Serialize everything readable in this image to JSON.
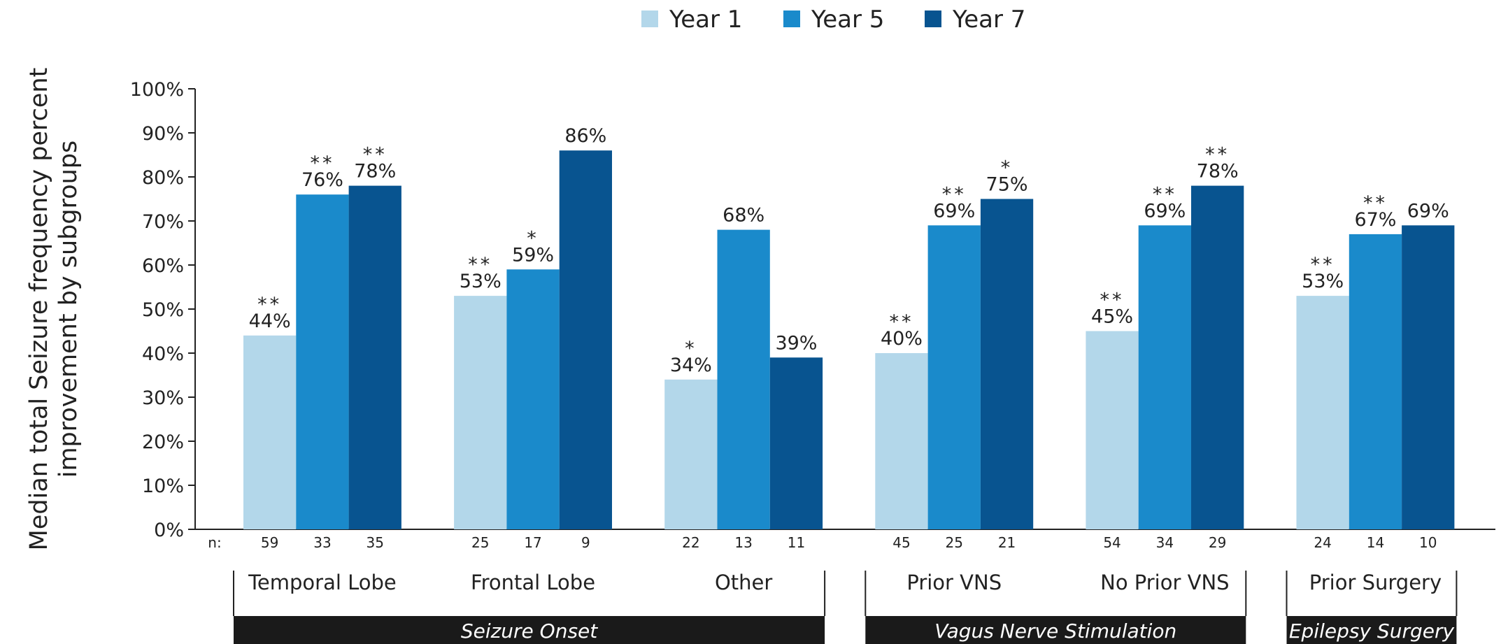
{
  "chart_data": {
    "type": "bar",
    "ylabel": "Median total Seizure frequency percent improvement by subgroups",
    "legend": "top",
    "categories": [
      "Temporal Lobe",
      "Frontal Lobe",
      "Other",
      "Prior VNS",
      "No Prior VNS",
      "Prior Surgery"
    ],
    "groups": [
      {
        "label": "Seizure Onset",
        "count": 3
      },
      {
        "label": "Vagus Nerve Stimulation",
        "count": 2
      },
      {
        "label": "Epilepsy Surgery",
        "count": 1
      }
    ],
    "n_label": "n:",
    "series": [
      {
        "name": "Year 1",
        "color": "#b3d7ea",
        "values": [
          44,
          53,
          34,
          40,
          45,
          53
        ],
        "value_labels": [
          "44%",
          "53%",
          "34%",
          "40%",
          "45%",
          "53%"
        ],
        "significance": [
          "**",
          "**",
          "*",
          "**",
          "**",
          "**"
        ],
        "n": [
          59,
          25,
          22,
          45,
          54,
          24
        ]
      },
      {
        "name": "Year 5",
        "color": "#1a8acb",
        "values": [
          76,
          59,
          68,
          69,
          69,
          67
        ],
        "value_labels": [
          "76%",
          "59%",
          "68%",
          "69%",
          "69%",
          "67%"
        ],
        "significance": [
          "**",
          "*",
          null,
          "**",
          "**",
          "**"
        ],
        "n": [
          33,
          17,
          13,
          25,
          34,
          14
        ]
      },
      {
        "name": "Year 7",
        "color": "#085490",
        "values": [
          78,
          86,
          39,
          75,
          78,
          69
        ],
        "value_labels": [
          "78%",
          "86%",
          "39%",
          "75%",
          "78%",
          "69%"
        ],
        "significance": [
          "**",
          null,
          null,
          "*",
          "**",
          null
        ],
        "n": [
          35,
          9,
          11,
          21,
          29,
          10
        ]
      }
    ],
    "ylim": [
      0,
      100
    ],
    "yticks": [
      {
        "value": 0,
        "label": "0%"
      },
      {
        "value": 10,
        "label": "10%"
      },
      {
        "value": 20,
        "label": "20%"
      },
      {
        "value": 30,
        "label": "30%"
      },
      {
        "value": 40,
        "label": "40%"
      },
      {
        "value": 50,
        "label": "50%"
      },
      {
        "value": 60,
        "label": "60%"
      },
      {
        "value": 70,
        "label": "70%"
      },
      {
        "value": 80,
        "label": "80%"
      },
      {
        "value": 90,
        "label": "90%"
      },
      {
        "value": 100,
        "label": "100%"
      }
    ],
    "grid": false
  }
}
